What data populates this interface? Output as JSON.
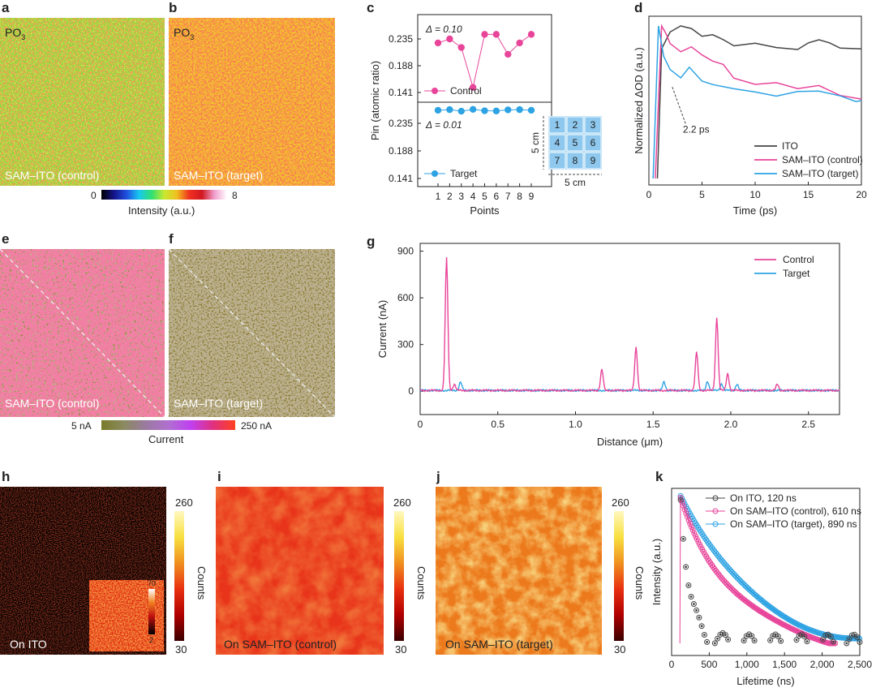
{
  "panels": {
    "a": {
      "letter": "a",
      "species": "PO",
      "species_sub": "3",
      "caption": "SAM–ITO (control)"
    },
    "b": {
      "letter": "b",
      "species": "PO",
      "species_sub": "3",
      "caption": "SAM–ITO (target)"
    },
    "ab_colorbar": {
      "min": "0",
      "max": "8",
      "label": "Intensity (a.u.)"
    },
    "c": {
      "letter": "c",
      "ylabel": "Pin (atomic ratio)",
      "xlabel": "Points",
      "delta_control": "Δ = 0.10",
      "delta_target": "Δ = 0.01",
      "grid_w": "5 cm",
      "grid_h": "5 cm",
      "grid_cells": [
        "1",
        "2",
        "3",
        "4",
        "5",
        "6",
        "7",
        "8",
        "9"
      ]
    },
    "d": {
      "letter": "d",
      "ylabel": "Normalized ΔOD (a.u.)",
      "xlabel": "Time (ps)",
      "annotation": "2.2 ps"
    },
    "e": {
      "letter": "e",
      "caption": "SAM–ITO (control)"
    },
    "f": {
      "letter": "f",
      "caption": "SAM–ITO (target)"
    },
    "ef_colorbar": {
      "min": "5 nA",
      "max": "250 nA",
      "label": "Current"
    },
    "g": {
      "letter": "g",
      "ylabel": "Current (nA)",
      "xlabel": "Distance (μm)"
    },
    "h": {
      "letter": "h",
      "caption": "On ITO",
      "cb_max": "260",
      "cb_min": "30",
      "cb_label": "Counts",
      "inset_max": "70",
      "inset_min": "2"
    },
    "i": {
      "letter": "i",
      "caption": "On SAM–ITO (control)",
      "cb_max": "260",
      "cb_min": "30",
      "cb_label": "Counts"
    },
    "j": {
      "letter": "j",
      "caption": "On SAM–ITO (target)",
      "cb_max": "260",
      "cb_min": "30",
      "cb_label": "Counts"
    },
    "k": {
      "letter": "k",
      "ylabel": "Intensity (a.u.)",
      "xlabel": "Lifetime (ns)"
    }
  },
  "colors": {
    "control": "#e8459a",
    "target": "#2ea3e3",
    "ito": "#444444",
    "afm_bg": "#8a7a2e"
  },
  "chart_data": [
    {
      "id": "c",
      "type": "scatter",
      "title": "",
      "xlabel": "Points",
      "ylabel": "Pin (atomic ratio)",
      "categories": [
        "1",
        "2",
        "3",
        "4",
        "5",
        "6",
        "7",
        "8",
        "9"
      ],
      "yticks": [
        "0.141",
        "0.188",
        "0.235"
      ],
      "series": [
        {
          "name": "Control",
          "values": [
            0.228,
            0.235,
            0.22,
            0.15,
            0.243,
            0.243,
            0.208,
            0.228,
            0.243
          ]
        },
        {
          "name": "Target",
          "values": [
            0.236,
            0.239,
            0.232,
            0.24,
            0.234,
            0.233,
            0.238,
            0.239,
            0.236
          ]
        }
      ]
    },
    {
      "id": "d",
      "type": "line",
      "xlabel": "Time (ps)",
      "ylabel": "Normalized ΔOD (a.u.)",
      "xlim": [
        0,
        20
      ],
      "xticks": [
        "0",
        "5",
        "10",
        "15",
        "20"
      ],
      "series": [
        {
          "name": "ITO",
          "x": [
            0.8,
            1.2,
            2,
            3,
            3.5,
            4,
            5,
            6,
            7,
            8,
            10,
            12,
            14,
            15,
            16,
            17,
            18,
            20
          ],
          "values": [
            0.0,
            0.85,
            0.97,
            0.99,
            1.0,
            0.98,
            0.93,
            0.95,
            0.9,
            0.88,
            0.88,
            0.86,
            0.85,
            0.88,
            0.92,
            0.88,
            0.86,
            0.85
          ]
        },
        {
          "name": "SAM–ITO (control)",
          "x": [
            0.6,
            1.2,
            1.6,
            2,
            3,
            4,
            5,
            6,
            7,
            8,
            10,
            12,
            14,
            16,
            18,
            20
          ],
          "values": [
            0.0,
            1.0,
            0.96,
            0.88,
            0.83,
            0.87,
            0.8,
            0.78,
            0.74,
            0.66,
            0.62,
            0.62,
            0.6,
            0.6,
            0.55,
            0.52
          ]
        },
        {
          "name": "SAM–ITO (target)",
          "x": [
            0.4,
            0.9,
            1.4,
            2,
            3,
            3.8,
            5,
            6,
            8,
            10,
            12,
            14,
            16,
            18,
            19.5,
            20
          ],
          "values": [
            0.0,
            1.0,
            0.8,
            0.72,
            0.65,
            0.74,
            0.63,
            0.62,
            0.59,
            0.56,
            0.55,
            0.56,
            0.58,
            0.54,
            0.5,
            0.52
          ]
        }
      ],
      "legend": [
        "ITO",
        "SAM–ITO (control)",
        "SAM–ITO (target)"
      ],
      "legend_position": "bottom-right"
    },
    {
      "id": "g",
      "type": "line",
      "xlabel": "Distance (μm)",
      "ylabel": "Current (nA)",
      "xlim": [
        0,
        2.7
      ],
      "ylim": [
        -150,
        950
      ],
      "xticks": [
        "0",
        "0.5",
        "1.0",
        "1.5",
        "2.0",
        "2.5"
      ],
      "yticks": [
        "0",
        "300",
        "600",
        "900"
      ],
      "peaks_control": [
        [
          0.17,
          850
        ],
        [
          1.17,
          135
        ],
        [
          1.39,
          280
        ],
        [
          1.78,
          245
        ],
        [
          1.91,
          470
        ],
        [
          0.22,
          40
        ],
        [
          1.98,
          110
        ],
        [
          2.3,
          40
        ]
      ],
      "peaks_target": [
        [
          0.26,
          55
        ],
        [
          1.57,
          55
        ],
        [
          1.85,
          60
        ],
        [
          1.94,
          45
        ],
        [
          2.04,
          40
        ]
      ],
      "legend": [
        "Control",
        "Target"
      ],
      "legend_position": "top-right"
    },
    {
      "id": "k",
      "type": "scatter",
      "xlabel": "Lifetime (ns)",
      "ylabel": "Intensity (a.u.)",
      "xlim": [
        0,
        2500
      ],
      "xticks": [
        "0",
        "500",
        "1,000",
        "1,500",
        "2,000",
        "2,500"
      ],
      "series": [
        {
          "name": "On ITO, 120 ns",
          "tau": 120
        },
        {
          "name": "On SAM–ITO (control), 610 ns",
          "tau": 610
        },
        {
          "name": "On SAM–ITO (target), 890 ns",
          "tau": 890
        }
      ],
      "legend_position": "top-right"
    }
  ]
}
